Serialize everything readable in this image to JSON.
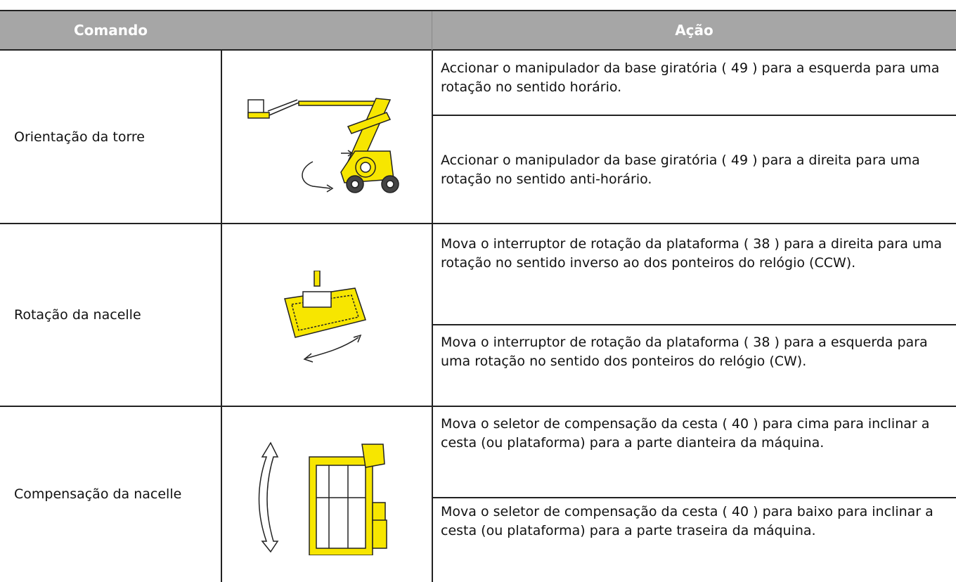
{
  "header": {
    "columns": [
      "Comando",
      "Ação"
    ]
  },
  "rows": [
    {
      "command": "Orientação da torre",
      "actions": [
        "Accionar o manipulador da base giratória ( 49 ) para a esquerda para uma rotação no sentido horário.",
        "Accionar o manipulador da base giratória ( 49 ) para a direita para uma rotação no sentido anti-horário."
      ]
    },
    {
      "command": "Rotação da nacelle",
      "actions": [
        "Mova o interruptor de rotação da plataforma ( 38 ) para a direita para uma rotação no sentido inverso ao dos ponteiros do relógio (CCW).",
        "Mova o interruptor de rotação da plataforma ( 38 ) para a esquerda para uma rotação no sentido dos ponteiros do relógio (CW)."
      ]
    },
    {
      "command": "Compensação da nacelle",
      "actions": [
        "Mova o seletor de compensação da cesta ( 40 ) para cima para inclinar a cesta (ou plataforma) para a parte dianteira da máquina.",
        "Mova o seletor de compensação da cesta ( 40 ) para baixo para inclinar a cesta (ou plataforma) para a parte traseira da máquina."
      ]
    }
  ]
}
